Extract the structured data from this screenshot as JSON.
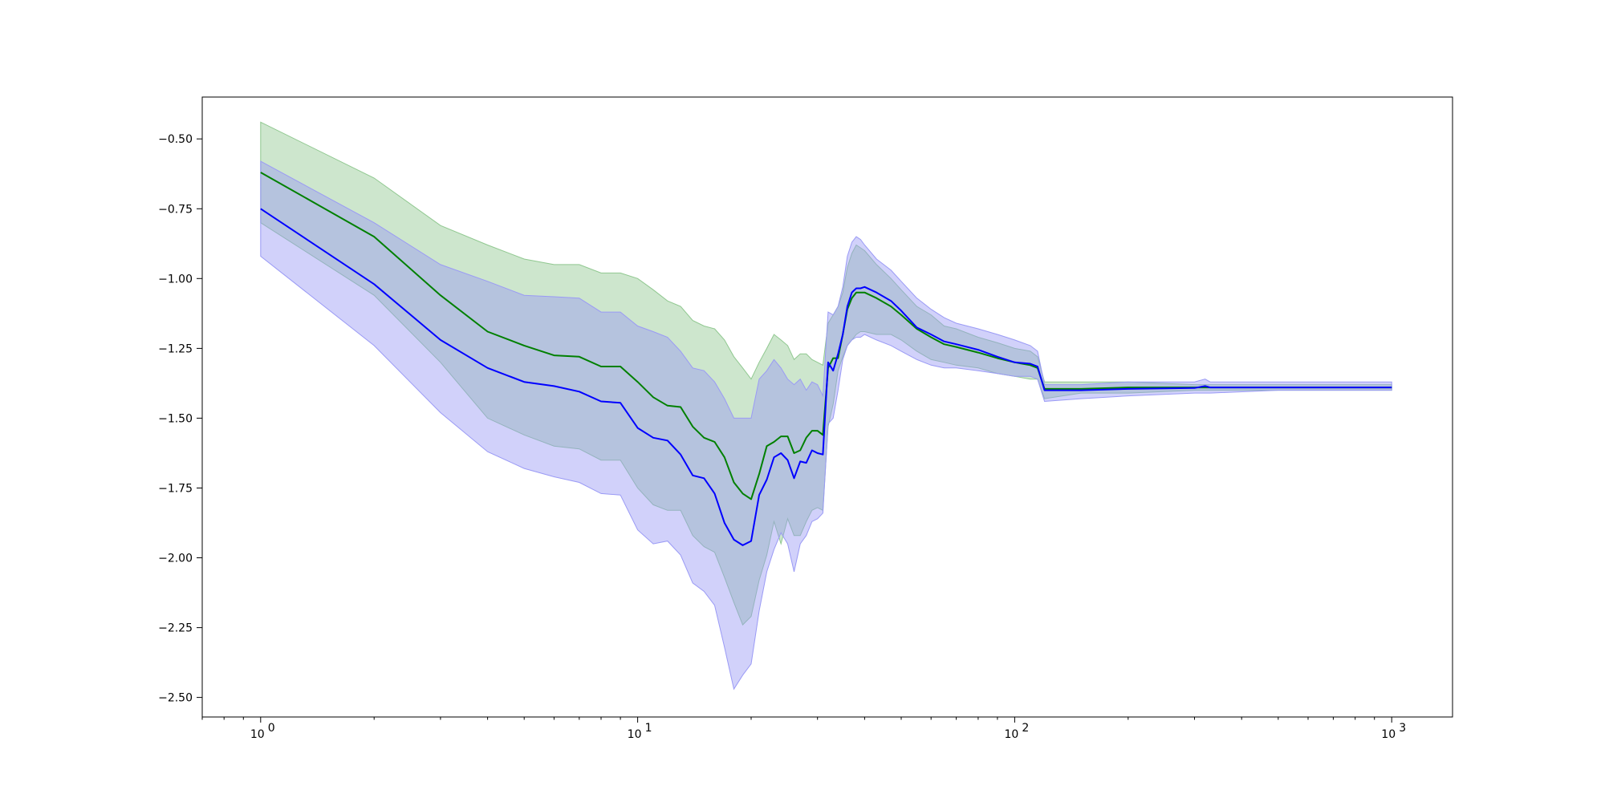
{
  "chart_data": {
    "type": "line",
    "title": "",
    "xlabel": "",
    "ylabel": "",
    "x_scale": "log",
    "xlim": [
      0.7,
      1450
    ],
    "ylim": [
      -2.57,
      -0.35
    ],
    "grid": false,
    "x_ticks": [
      {
        "value": 1,
        "base": "10",
        "exp": "0"
      },
      {
        "value": 10,
        "base": "10",
        "exp": "1"
      },
      {
        "value": 100,
        "base": "10",
        "exp": "2"
      },
      {
        "value": 1000,
        "base": "10",
        "exp": "3"
      }
    ],
    "y_ticks": [
      {
        "value": -0.5,
        "label": "−0.50"
      },
      {
        "value": -0.75,
        "label": "−0.75"
      },
      {
        "value": -1.0,
        "label": "−1.00"
      },
      {
        "value": -1.25,
        "label": "−1.25"
      },
      {
        "value": -1.5,
        "label": "−1.50"
      },
      {
        "value": -1.75,
        "label": "−1.75"
      },
      {
        "value": -2.0,
        "label": "−2.00"
      },
      {
        "value": -2.25,
        "label": "−2.25"
      },
      {
        "value": -2.5,
        "label": "−2.50"
      }
    ],
    "series": [
      {
        "color": "#008000",
        "band_color": "#90c890",
        "x": [
          1,
          2,
          3,
          4,
          5,
          6,
          7,
          8,
          9,
          10,
          11,
          12,
          13,
          14,
          15,
          16,
          17,
          18,
          19,
          20,
          21,
          22,
          23,
          24,
          25,
          26,
          27,
          28,
          29,
          30,
          31,
          32,
          33,
          34,
          35,
          36,
          37,
          38,
          39,
          40,
          43,
          47,
          50,
          55,
          60,
          65,
          70,
          80,
          90,
          100,
          110,
          115,
          120,
          150,
          200,
          300,
          500,
          1000
        ],
        "values": [
          -0.62,
          -0.85,
          -1.06,
          -1.19,
          -1.24,
          -1.275,
          -1.28,
          -1.315,
          -1.315,
          -1.37,
          -1.425,
          -1.455,
          -1.46,
          -1.53,
          -1.57,
          -1.585,
          -1.64,
          -1.73,
          -1.77,
          -1.79,
          -1.7,
          -1.6,
          -1.585,
          -1.565,
          -1.565,
          -1.625,
          -1.615,
          -1.57,
          -1.545,
          -1.545,
          -1.56,
          -1.32,
          -1.285,
          -1.285,
          -1.2,
          -1.11,
          -1.07,
          -1.05,
          -1.05,
          -1.05,
          -1.07,
          -1.1,
          -1.13,
          -1.18,
          -1.21,
          -1.235,
          -1.245,
          -1.265,
          -1.285,
          -1.3,
          -1.31,
          -1.32,
          -1.395,
          -1.395,
          -1.39,
          -1.39,
          -1.39,
          -1.39
        ],
        "lower": [
          -0.8,
          -1.06,
          -1.3,
          -1.5,
          -1.56,
          -1.6,
          -1.61,
          -1.65,
          -1.65,
          -1.75,
          -1.81,
          -1.83,
          -1.83,
          -1.92,
          -1.96,
          -1.98,
          -2.07,
          -2.16,
          -2.24,
          -2.21,
          -2.08,
          -1.99,
          -1.87,
          -1.95,
          -1.86,
          -1.92,
          -1.92,
          -1.87,
          -1.83,
          -1.82,
          -1.83,
          -1.53,
          -1.45,
          -1.33,
          -1.28,
          -1.24,
          -1.22,
          -1.2,
          -1.19,
          -1.19,
          -1.2,
          -1.2,
          -1.22,
          -1.26,
          -1.29,
          -1.3,
          -1.31,
          -1.32,
          -1.34,
          -1.35,
          -1.36,
          -1.36,
          -1.43,
          -1.41,
          -1.41,
          -1.4,
          -1.4,
          -1.4
        ],
        "upper": [
          -0.44,
          -0.64,
          -0.81,
          -0.88,
          -0.93,
          -0.95,
          -0.95,
          -0.98,
          -0.98,
          -1.0,
          -1.04,
          -1.08,
          -1.1,
          -1.15,
          -1.17,
          -1.18,
          -1.22,
          -1.28,
          -1.32,
          -1.36,
          -1.3,
          -1.25,
          -1.2,
          -1.22,
          -1.24,
          -1.29,
          -1.27,
          -1.27,
          -1.29,
          -1.3,
          -1.31,
          -1.16,
          -1.13,
          -1.1,
          -1.05,
          -0.96,
          -0.91,
          -0.88,
          -0.89,
          -0.9,
          -0.95,
          -1.0,
          -1.04,
          -1.1,
          -1.13,
          -1.17,
          -1.18,
          -1.21,
          -1.23,
          -1.25,
          -1.26,
          -1.28,
          -1.37,
          -1.37,
          -1.37,
          -1.38,
          -1.38,
          -1.38
        ]
      },
      {
        "color": "#0000ff",
        "band_color": "#9a9af5",
        "x": [
          1,
          2,
          3,
          4,
          5,
          6,
          7,
          8,
          9,
          10,
          11,
          12,
          13,
          14,
          15,
          16,
          17,
          18,
          19,
          20,
          21,
          22,
          23,
          24,
          25,
          26,
          27,
          28,
          29,
          30,
          31,
          32,
          33,
          34,
          35,
          36,
          37,
          38,
          39,
          40,
          43,
          47,
          50,
          55,
          60,
          65,
          70,
          80,
          90,
          100,
          110,
          115,
          120,
          150,
          200,
          300,
          320,
          330,
          500,
          1000
        ],
        "values": [
          -0.75,
          -1.02,
          -1.22,
          -1.32,
          -1.37,
          -1.385,
          -1.405,
          -1.44,
          -1.445,
          -1.535,
          -1.57,
          -1.58,
          -1.63,
          -1.705,
          -1.715,
          -1.77,
          -1.875,
          -1.935,
          -1.955,
          -1.94,
          -1.775,
          -1.72,
          -1.64,
          -1.625,
          -1.65,
          -1.715,
          -1.655,
          -1.66,
          -1.615,
          -1.625,
          -1.63,
          -1.3,
          -1.33,
          -1.27,
          -1.2,
          -1.1,
          -1.05,
          -1.035,
          -1.035,
          -1.03,
          -1.05,
          -1.08,
          -1.115,
          -1.175,
          -1.2,
          -1.225,
          -1.235,
          -1.255,
          -1.28,
          -1.3,
          -1.305,
          -1.315,
          -1.4,
          -1.4,
          -1.395,
          -1.392,
          -1.385,
          -1.39,
          -1.39,
          -1.39
        ],
        "lower": [
          -0.92,
          -1.24,
          -1.48,
          -1.62,
          -1.68,
          -1.71,
          -1.73,
          -1.77,
          -1.775,
          -1.9,
          -1.95,
          -1.94,
          -1.99,
          -2.09,
          -2.12,
          -2.17,
          -2.32,
          -2.47,
          -2.42,
          -2.38,
          -2.19,
          -2.05,
          -1.97,
          -1.91,
          -1.95,
          -2.05,
          -1.95,
          -1.92,
          -1.87,
          -1.86,
          -1.84,
          -1.52,
          -1.5,
          -1.4,
          -1.29,
          -1.24,
          -1.22,
          -1.21,
          -1.21,
          -1.2,
          -1.22,
          -1.24,
          -1.26,
          -1.29,
          -1.31,
          -1.32,
          -1.32,
          -1.33,
          -1.34,
          -1.35,
          -1.35,
          -1.36,
          -1.44,
          -1.43,
          -1.42,
          -1.41,
          -1.41,
          -1.41,
          -1.4,
          -1.4
        ],
        "upper": [
          -0.58,
          -0.8,
          -0.95,
          -1.01,
          -1.06,
          -1.065,
          -1.07,
          -1.12,
          -1.12,
          -1.17,
          -1.19,
          -1.21,
          -1.26,
          -1.32,
          -1.33,
          -1.37,
          -1.43,
          -1.5,
          -1.5,
          -1.5,
          -1.36,
          -1.33,
          -1.29,
          -1.32,
          -1.36,
          -1.38,
          -1.36,
          -1.4,
          -1.37,
          -1.38,
          -1.42,
          -1.12,
          -1.13,
          -1.1,
          -1.03,
          -0.92,
          -0.87,
          -0.85,
          -0.86,
          -0.88,
          -0.93,
          -0.97,
          -1.01,
          -1.07,
          -1.11,
          -1.14,
          -1.16,
          -1.18,
          -1.2,
          -1.22,
          -1.24,
          -1.26,
          -1.38,
          -1.38,
          -1.37,
          -1.37,
          -1.36,
          -1.37,
          -1.37,
          -1.37
        ]
      }
    ]
  }
}
